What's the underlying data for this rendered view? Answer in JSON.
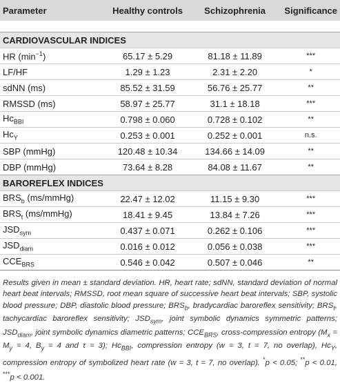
{
  "header": [
    "Parameter",
    "Healthy controls",
    "Schizophrenia",
    "Significance"
  ],
  "sections": [
    {
      "title": "CARDIOVASCULAR INDICES",
      "rows": [
        {
          "label": {
            "text": "HR (min",
            "sup": "−1",
            "after": ")"
          },
          "cells": [
            "65.17 ± 5.29",
            "81.18 ± 11.89",
            "***"
          ]
        },
        {
          "label": {
            "text": "LF/HF"
          },
          "cells": [
            "1.29 ± 1.23",
            "2.31 ± 2.20",
            "*"
          ]
        },
        {
          "label": {
            "text": "sdNN (ms)"
          },
          "cells": [
            "85.52 ± 31.59",
            "56.76 ± 25.77",
            "**"
          ]
        },
        {
          "label": {
            "text": "RMSSD (ms)"
          },
          "cells": [
            "58.97 ± 25.77",
            "31.1 ± 18.18",
            "***"
          ]
        },
        {
          "label": {
            "text": "Hc",
            "sub": "BBI"
          },
          "cells": [
            "0.798 ± 0.060",
            "0.728 ± 0.102",
            "**"
          ]
        },
        {
          "label": {
            "text": "Hc",
            "sub": "Y"
          },
          "cells": [
            "0.253 ± 0.001",
            "0.252 ± 0.001",
            "n.s."
          ]
        },
        {
          "label": {
            "text": "SBP (mmHg)"
          },
          "cells": [
            "120.48 ± 10.34",
            "134.66 ± 14.09",
            "**"
          ]
        },
        {
          "label": {
            "text": "DBP (mmHg)"
          },
          "cells": [
            "73.64 ± 8.28",
            "84.08 ± 11.67",
            "**"
          ]
        }
      ]
    },
    {
      "title": "BAROREFLEX INDICES",
      "rows": [
        {
          "label": {
            "text": "BRS",
            "sub": "b",
            "after": " (ms/mmHg)"
          },
          "cells": [
            "22.47 ± 12.02",
            "11.15 ± 9.30",
            "***"
          ]
        },
        {
          "label": {
            "text": "BRS",
            "sub": "t",
            "after": " (ms/mmHg)"
          },
          "cells": [
            "18.41 ± 9.45",
            "13.84 ± 7.26",
            "***"
          ]
        },
        {
          "label": {
            "text": "JSD",
            "sub": "sym"
          },
          "cells": [
            "0.437 ± 0.071",
            "0.262 ± 0.106",
            "***"
          ]
        },
        {
          "label": {
            "text": "JSD",
            "sub": "diam"
          },
          "cells": [
            "0.016 ± 0.012",
            "0.056 ± 0.038",
            "***"
          ]
        },
        {
          "label": {
            "text": "CCE",
            "sub": "BRS"
          },
          "cells": [
            "0.546 ± 0.042",
            "0.507 ± 0.046",
            "**"
          ]
        }
      ]
    }
  ],
  "footnote": [
    "Results given in mean ± standard deviation. HR, heart rate; sdNN, standard deviation of normal heart beat intervals; RMSSD, root mean square of successive heart beat intervals; SBP, systolic blood pressure; DBP, diastolic blood pressure; BRS",
    "b",
    ", bradycardiac baroreflex sensitivity; BRS",
    "t",
    ", tachycardiac baroreflex sensitivity; JSD",
    "sym",
    ", joint symbolic dynamics symmetric patterns; JSD",
    "diam",
    ", joint symbolic dynamics diametric patterns; CCE",
    "BRS",
    ", cross-compression entropy (M",
    "x",
    " = M",
    "y",
    " = 4, B",
    "y",
    " = 4 and τ = 3); Hc",
    "BBI",
    ", compression entropy (w = 3, t = 7, no overlap), Hc",
    "Y",
    ", compression entropy of symbolized heart rate (w = 3, t = 7, no overlap). ",
    "*",
    "p < 0.05; ",
    "**",
    "p < 0.01, ",
    "***",
    "p < 0.001."
  ]
}
